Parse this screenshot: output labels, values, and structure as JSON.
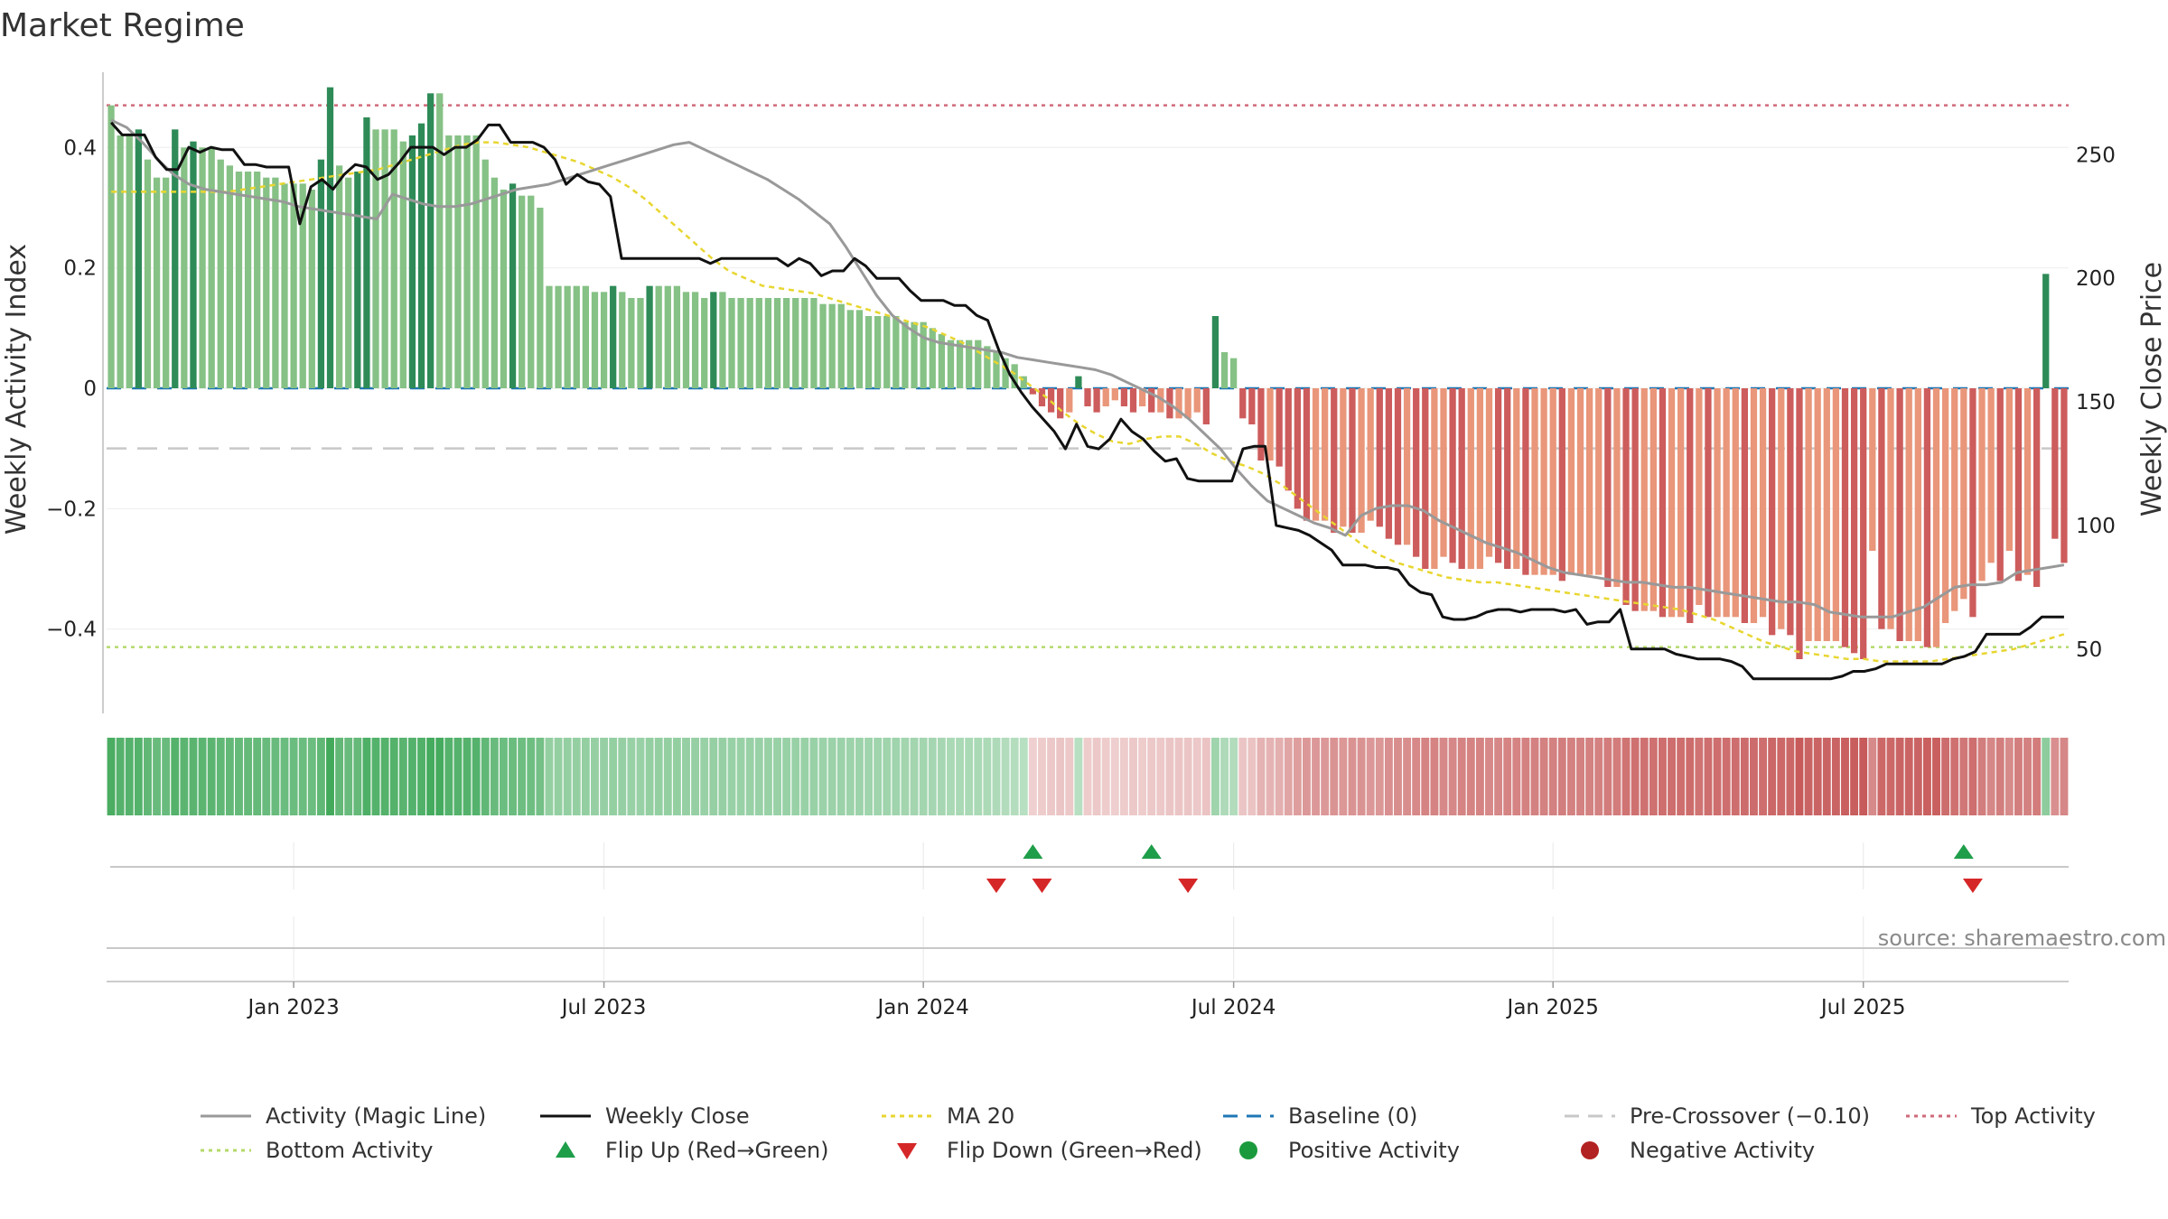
{
  "chart_data": {
    "type": "bar",
    "title": "Market Regime",
    "ylabel_left": "Weekly Activity Index",
    "ylabel_right": "Weekly Close Price",
    "source": "source: sharemaestro.com",
    "left_axis": {
      "ylim": [
        -0.54,
        0.54
      ],
      "ticks": [
        0.4,
        0.2,
        0,
        -0.2,
        -0.4
      ],
      "tick_labels": [
        "0.4",
        "0.2",
        "0",
        "−0.2",
        "−0.4"
      ]
    },
    "right_axis": {
      "ylim": [
        24,
        287
      ],
      "ticks": [
        250,
        200,
        150,
        100,
        50
      ],
      "tick_labels": [
        "250",
        "200",
        "150",
        "100",
        "50"
      ]
    },
    "x_ticks": [
      "Jan 2023",
      "Jul 2023",
      "Jan 2024",
      "Jul 2024",
      "Jan 2025",
      "Jul 2025"
    ],
    "x_tick_weeks": [
      20,
      54,
      89,
      123,
      158,
      192
    ],
    "reference_lines": {
      "baseline": 0,
      "pre_crossover": -0.1,
      "top_activity": 0.47,
      "bottom_activity": -0.43
    },
    "activity": [
      0.47,
      0.42,
      0.42,
      0.43,
      0.38,
      0.35,
      0.35,
      0.43,
      0.4,
      0.41,
      0.4,
      0.4,
      0.38,
      0.37,
      0.36,
      0.36,
      0.36,
      0.35,
      0.35,
      0.34,
      0.34,
      0.34,
      0.33,
      0.38,
      0.5,
      0.37,
      0.35,
      0.36,
      0.45,
      0.43,
      0.43,
      0.43,
      0.41,
      0.42,
      0.44,
      0.49,
      0.49,
      0.42,
      0.42,
      0.42,
      0.42,
      0.38,
      0.35,
      0.33,
      0.34,
      0.32,
      0.32,
      0.3,
      0.17,
      0.17,
      0.17,
      0.17,
      0.17,
      0.16,
      0.16,
      0.17,
      0.16,
      0.15,
      0.15,
      0.17,
      0.17,
      0.17,
      0.17,
      0.16,
      0.16,
      0.15,
      0.16,
      0.16,
      0.15,
      0.15,
      0.15,
      0.15,
      0.15,
      0.15,
      0.15,
      0.15,
      0.15,
      0.15,
      0.14,
      0.14,
      0.14,
      0.13,
      0.13,
      0.12,
      0.12,
      0.12,
      0.12,
      0.11,
      0.11,
      0.11,
      0.1,
      0.09,
      0.08,
      0.08,
      0.08,
      0.08,
      0.07,
      0.06,
      0.05,
      0.04,
      0.02,
      -0.01,
      -0.03,
      -0.04,
      -0.05,
      -0.04,
      0.02,
      -0.03,
      -0.04,
      -0.03,
      -0.02,
      -0.03,
      -0.04,
      -0.03,
      -0.04,
      -0.04,
      -0.05,
      -0.05,
      -0.05,
      -0.04,
      -0.06,
      0.12,
      0.06,
      0.05,
      -0.05,
      -0.06,
      -0.12,
      -0.12,
      -0.13,
      -0.17,
      -0.2,
      -0.22,
      -0.22,
      -0.22,
      -0.24,
      -0.23,
      -0.24,
      -0.24,
      -0.22,
      -0.23,
      -0.25,
      -0.26,
      -0.26,
      -0.28,
      -0.3,
      -0.3,
      -0.28,
      -0.29,
      -0.3,
      -0.3,
      -0.3,
      -0.28,
      -0.29,
      -0.3,
      -0.3,
      -0.31,
      -0.31,
      -0.31,
      -0.31,
      -0.32,
      -0.31,
      -0.31,
      -0.31,
      -0.31,
      -0.33,
      -0.33,
      -0.36,
      -0.37,
      -0.37,
      -0.37,
      -0.38,
      -0.38,
      -0.38,
      -0.39,
      -0.36,
      -0.38,
      -0.38,
      -0.38,
      -0.38,
      -0.39,
      -0.39,
      -0.38,
      -0.41,
      -0.4,
      -0.41,
      -0.45,
      -0.42,
      -0.42,
      -0.42,
      -0.42,
      -0.43,
      -0.44,
      -0.45,
      -0.27,
      -0.4,
      -0.4,
      -0.42,
      -0.42,
      -0.42,
      -0.43,
      -0.43,
      -0.39,
      -0.37,
      -0.35,
      -0.38,
      -0.32,
      -0.29,
      -0.32,
      -0.27,
      -0.32,
      -0.31,
      -0.33,
      0.19,
      -0.25,
      -0.29
    ],
    "weekly_close": [
      263,
      258,
      258,
      258,
      249,
      244,
      244,
      253,
      251,
      253,
      252,
      252,
      246,
      246,
      245,
      245,
      245,
      222,
      237,
      240,
      236,
      242,
      246,
      245,
      240,
      242,
      247,
      253,
      253,
      253,
      250,
      253,
      253,
      256,
      262,
      262,
      255,
      255,
      255,
      253,
      248,
      238,
      242,
      239,
      238,
      233,
      208,
      208,
      208,
      208,
      208,
      208,
      208,
      208,
      206,
      208,
      208,
      208,
      208,
      208,
      208,
      205,
      208,
      206,
      201,
      203,
      203,
      208,
      205,
      200,
      200,
      200,
      195,
      191,
      191,
      191,
      189,
      189,
      185,
      183,
      171,
      161,
      154,
      148,
      143,
      138,
      131,
      141,
      132,
      131,
      135,
      143,
      138,
      135,
      130,
      126,
      127,
      119,
      118,
      118,
      118,
      118,
      131,
      132,
      132,
      100,
      99,
      98,
      96,
      93,
      90,
      84,
      84,
      84,
      83,
      83,
      82,
      76,
      73,
      72,
      63,
      62,
      62,
      63,
      65,
      66,
      66,
      65,
      66,
      66,
      66,
      65,
      66,
      60,
      61,
      61,
      66,
      50,
      50,
      50,
      50,
      48,
      47,
      46,
      46,
      46,
      45,
      43,
      38,
      38,
      38,
      38,
      38,
      38,
      38,
      38,
      39,
      41,
      41,
      42,
      44,
      44,
      44,
      44,
      44,
      44,
      46,
      47,
      49,
      56,
      56,
      56,
      56,
      59,
      63,
      63,
      63
    ],
    "magic_line": [
      264,
      261,
      255,
      248,
      242,
      238,
      236,
      235,
      234,
      233,
      232,
      231,
      229,
      228,
      227,
      226,
      225,
      224,
      234,
      232,
      230,
      229,
      229,
      230,
      232,
      234,
      236,
      237,
      238,
      240,
      242,
      244,
      246,
      248,
      250,
      252,
      254,
      255,
      252,
      249,
      246,
      243,
      240,
      236,
      232,
      227,
      222,
      213,
      203,
      193,
      185,
      180,
      176,
      174,
      173,
      172,
      171,
      170,
      168,
      167,
      166,
      165,
      164,
      163,
      161,
      158,
      155,
      152,
      148,
      143,
      137,
      131,
      123,
      116,
      110,
      107,
      104,
      101,
      99,
      96,
      104,
      107,
      108,
      108,
      106,
      102,
      99,
      96,
      93,
      91,
      89,
      86,
      83,
      81,
      80,
      79,
      78,
      77,
      77,
      76,
      75,
      75,
      74,
      73,
      72,
      71,
      70,
      69,
      69,
      68,
      65,
      64,
      63,
      63,
      63,
      65,
      67,
      71,
      75,
      76,
      76,
      77,
      81,
      82,
      83,
      84
    ],
    "ma20": [
      235,
      235,
      235,
      235,
      235,
      235,
      235,
      235,
      236,
      237,
      238,
      239,
      240,
      241,
      242,
      243,
      244,
      246,
      248,
      250,
      252,
      254,
      255,
      255,
      254,
      253,
      251,
      249,
      247,
      244,
      241,
      237,
      232,
      226,
      220,
      214,
      208,
      203,
      200,
      197,
      196,
      195,
      194,
      192,
      190,
      188,
      186,
      184,
      182,
      180,
      177,
      174,
      170,
      166,
      162,
      157,
      152,
      146,
      141,
      137,
      134,
      133,
      135,
      136,
      136,
      133,
      129,
      126,
      124,
      121,
      117,
      112,
      107,
      102,
      97,
      92,
      88,
      85,
      83,
      81,
      79,
      78,
      77,
      77,
      76,
      75,
      74,
      73,
      72,
      71,
      70,
      69,
      68,
      67,
      66,
      64,
      62,
      59,
      56,
      53,
      51,
      49,
      48,
      47,
      46,
      46,
      45,
      45,
      45,
      45,
      46,
      47,
      48,
      49,
      50,
      52,
      54,
      56
    ]
  },
  "legend": {
    "magic_line": "Activity (Magic Line)",
    "weekly_close": "Weekly Close",
    "ma20": "MA 20",
    "baseline": "Baseline (0)",
    "pre_crossover": "Pre-Crossover (−0.10)",
    "top_activity": "Top Activity",
    "bottom_activity": "Bottom Activity",
    "flip_up": "Flip Up (Red→Green)",
    "flip_down": "Flip Down (Green→Red)",
    "positive": "Positive Activity",
    "negative": "Negative Activity"
  },
  "flips": {
    "up_weeks": [
      101,
      114,
      203
    ],
    "down_weeks": [
      97,
      102,
      118,
      204
    ]
  },
  "colors": {
    "bar_pos_dark": "#2e8b57",
    "bar_pos_light": "#86c186",
    "bar_neg_dark": "#cd5c5c",
    "bar_neg_light": "#e9967a",
    "close": "#111111",
    "magic": "#999999",
    "ma20": "#e8d630",
    "baseline": "#1f77b4",
    "pre": "#c8c8c8",
    "top": "#d06a7a",
    "bottom": "#b5d96a",
    "flip_up": "#1f9e4a",
    "flip_down": "#d62728"
  }
}
